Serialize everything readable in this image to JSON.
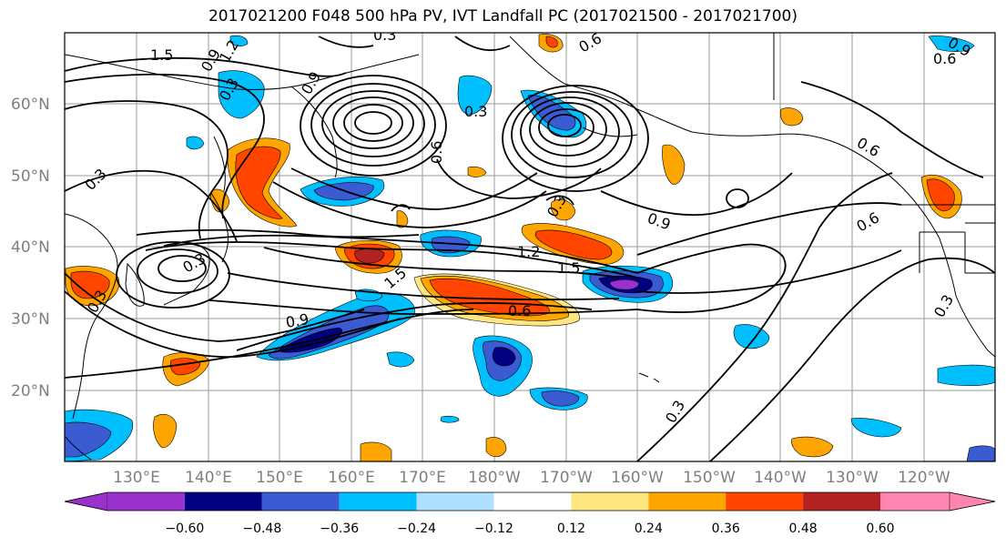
{
  "title": "2017021200 F048 500 hPa PV, IVT Landfall PC (2017021500 - 2017021700)",
  "map": {
    "lat_labels": [
      "60°N",
      "50°N",
      "40°N",
      "30°N",
      "20°N"
    ],
    "lon_labels": [
      "130°E",
      "140°E",
      "150°E",
      "160°E",
      "170°E",
      "180°W",
      "170°W",
      "160°W",
      "150°W",
      "140°W",
      "130°W",
      "120°W"
    ],
    "contour_labels": [
      "1.5",
      "0.9",
      "1.2",
      "0.3",
      "0.3",
      "0.9",
      "0.6",
      "0.3",
      "0.6",
      "0.3",
      "0.9",
      "0.3",
      "1.2",
      "1.5",
      "1.5",
      "0.6",
      "0.9",
      "0.3",
      "0.6",
      "0.3",
      "0.3",
      "0.6",
      "0.3",
      "0.6",
      "0.9"
    ]
  },
  "colorbar": {
    "colors": [
      "#9932cc",
      "#000080",
      "#3a5bd1",
      "#00bfff",
      "#afe0ff",
      "#ffffff",
      "#ffe680",
      "#ffa500",
      "#ff4500",
      "#b22222",
      "#ff85b0"
    ],
    "tick_labels": [
      "−0.60",
      "−0.48",
      "−0.36",
      "−0.24",
      "−0.12",
      "0.12",
      "0.24",
      "0.36",
      "0.48",
      "0.60"
    ]
  }
}
